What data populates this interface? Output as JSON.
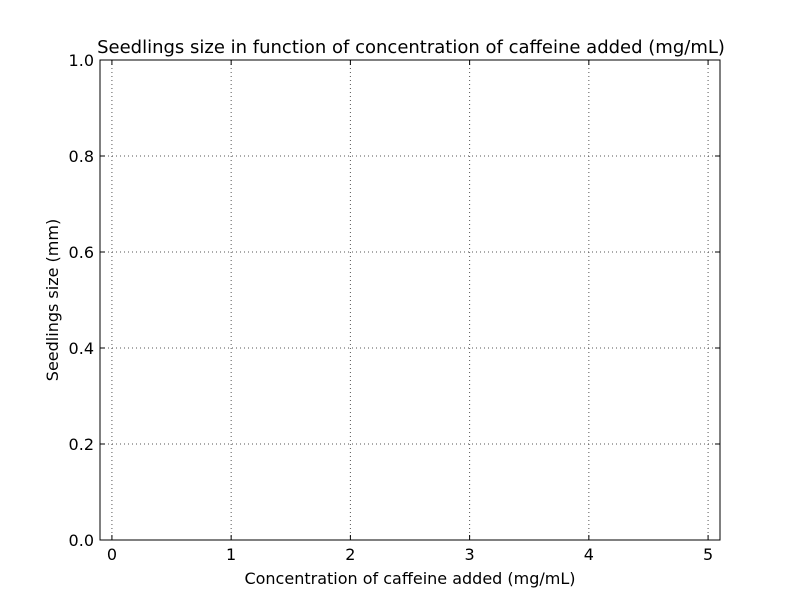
{
  "chart_data": {
    "type": "scatter",
    "title": "Seedlings size in function of concentration of caffeine added (mg/mL)",
    "xlabel": "Concentration of caffeine added (mg/mL)",
    "ylabel": "Seedlings size (mm)",
    "xlim": [
      -0.1,
      5.1
    ],
    "ylim": [
      0.0,
      1.0
    ],
    "xticks": [
      0,
      1,
      2,
      3,
      4,
      5
    ],
    "xtick_labels": [
      "0",
      "1",
      "2",
      "3",
      "4",
      "5"
    ],
    "yticks": [
      0.0,
      0.2,
      0.4,
      0.6,
      0.8,
      1.0
    ],
    "ytick_labels": [
      "0.0",
      "0.2",
      "0.4",
      "0.6",
      "0.8",
      "1.0"
    ],
    "grid": true,
    "series": []
  }
}
